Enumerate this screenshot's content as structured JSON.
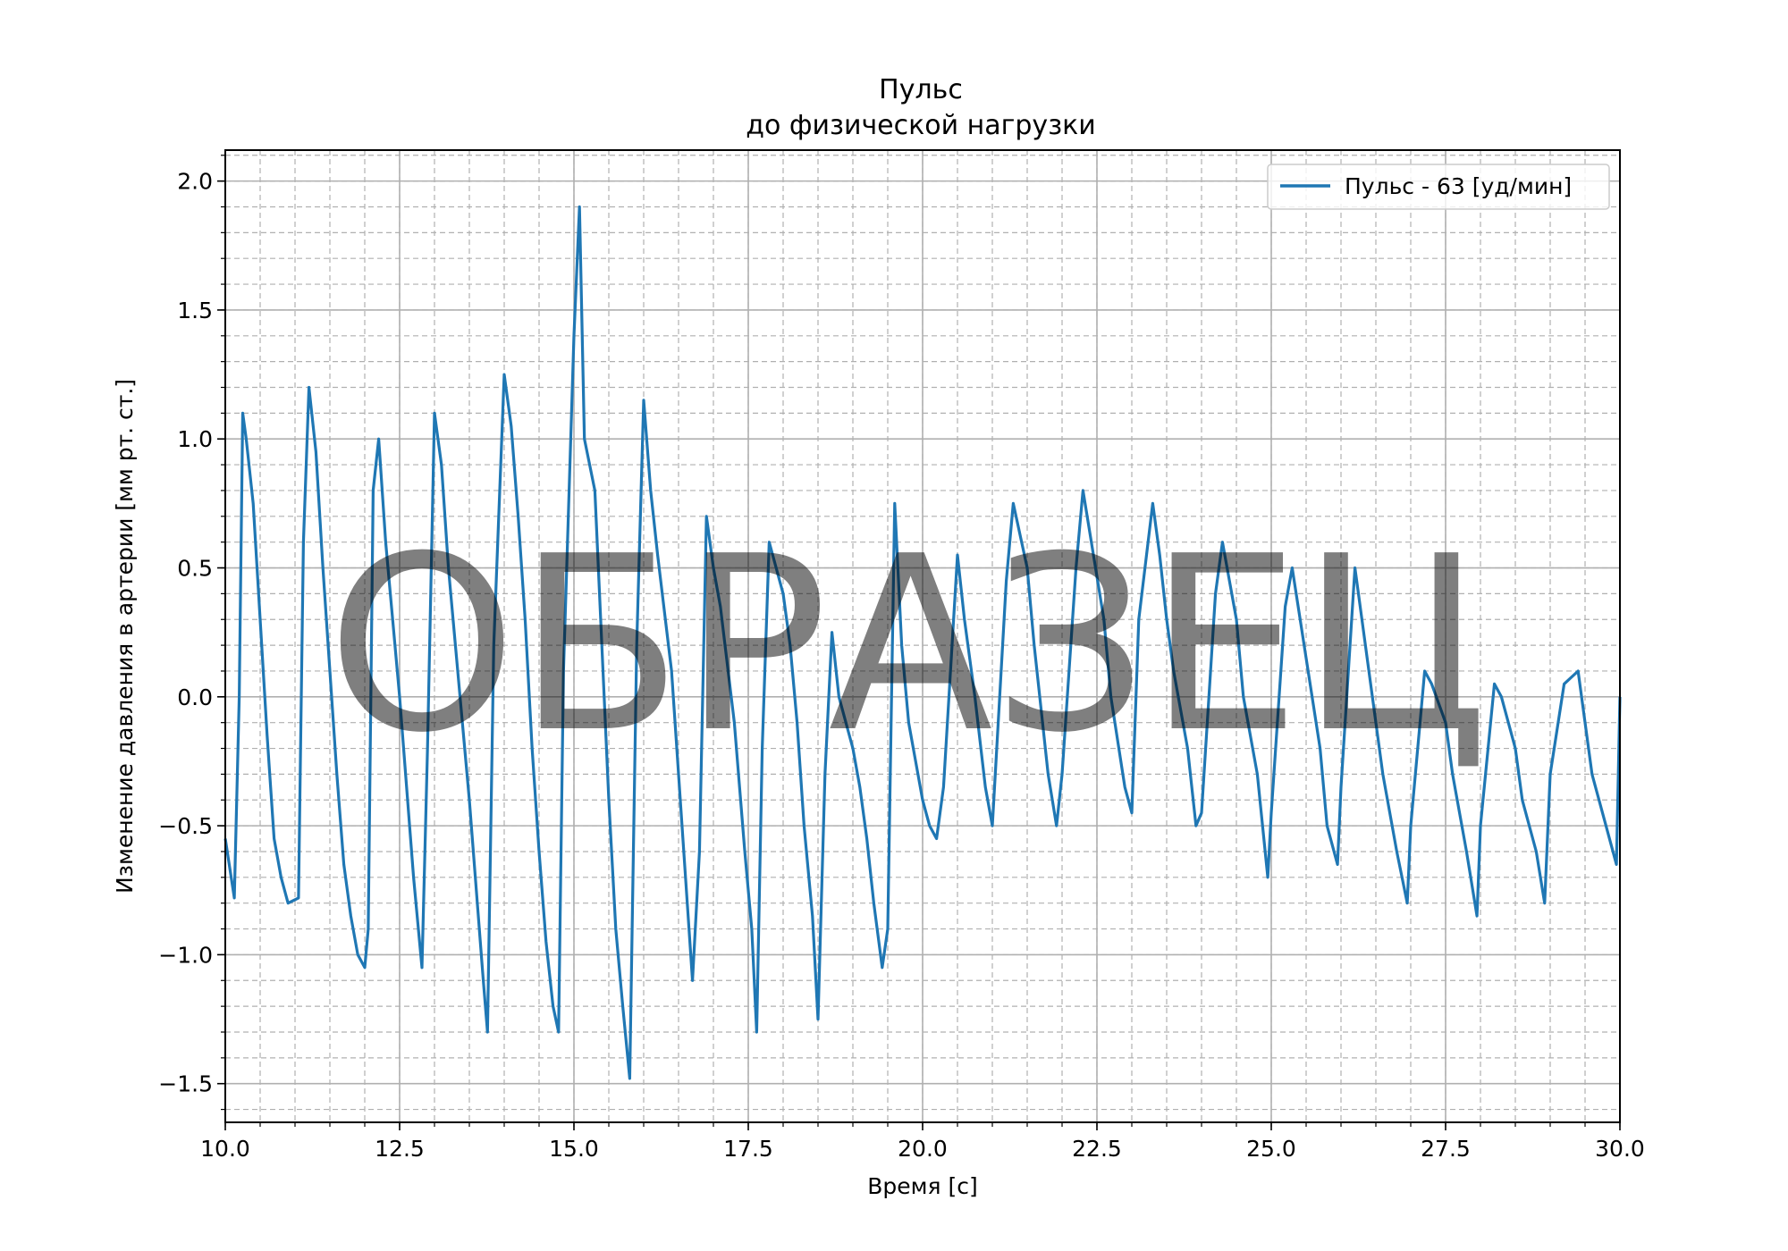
{
  "chart_data": {
    "type": "line",
    "title": [
      "Пульс",
      "до физической нагрузки"
    ],
    "xlabel": "Время [с]",
    "ylabel": "Изменение давления в артерии [мм рт. ст.]",
    "xlim": [
      10.0,
      30.0
    ],
    "ylim": [
      -1.65,
      2.12
    ],
    "x_ticks": [
      "10.0",
      "12.5",
      "15.0",
      "17.5",
      "20.0",
      "22.5",
      "25.0",
      "27.5",
      "30.0"
    ],
    "y_ticks": [
      "−1.5",
      "−1.0",
      "−0.5",
      "0.0",
      "0.5",
      "1.0",
      "1.5",
      "2.0"
    ],
    "grid": true,
    "legend_position": "top-right",
    "watermark": "ОБРАЗЕЦ",
    "colors": {
      "line": "#1f77b4",
      "grid_major": "#b0b0b0",
      "grid_minor": "#b0b0b0"
    },
    "series": [
      {
        "name": "Пульс - 63 [уд/мин]",
        "x": [
          10.0,
          10.13,
          10.2,
          10.25,
          10.3,
          10.4,
          10.5,
          10.6,
          10.7,
          10.8,
          10.9,
          11.05,
          11.12,
          11.2,
          11.3,
          11.4,
          11.5,
          11.6,
          11.7,
          11.8,
          11.9,
          12.0,
          12.05,
          12.12,
          12.2,
          12.3,
          12.4,
          12.5,
          12.6,
          12.7,
          12.82,
          12.9,
          13.0,
          13.1,
          13.2,
          13.3,
          13.4,
          13.5,
          13.6,
          13.7,
          13.76,
          13.85,
          14.0,
          14.1,
          14.2,
          14.3,
          14.4,
          14.5,
          14.6,
          14.7,
          14.78,
          14.85,
          15.0,
          15.08,
          15.15,
          15.3,
          15.4,
          15.5,
          15.6,
          15.7,
          15.8,
          15.9,
          16.0,
          16.1,
          16.2,
          16.4,
          16.5,
          16.6,
          16.7,
          16.8,
          16.9,
          17.0,
          17.1,
          17.3,
          17.45,
          17.55,
          17.62,
          17.7,
          17.8,
          18.0,
          18.1,
          18.2,
          18.3,
          18.42,
          18.5,
          18.6,
          18.7,
          18.8,
          19.0,
          19.1,
          19.2,
          19.3,
          19.42,
          19.5,
          19.6,
          19.7,
          19.8,
          19.9,
          20.0,
          20.1,
          20.2,
          20.3,
          20.5,
          20.6,
          20.75,
          20.9,
          21.0,
          21.2,
          21.3,
          21.5,
          21.6,
          21.7,
          21.8,
          21.92,
          22.0,
          22.2,
          22.3,
          22.45,
          22.6,
          22.7,
          22.9,
          23.0,
          23.1,
          23.3,
          23.4,
          23.5,
          23.6,
          23.8,
          23.92,
          24.0,
          24.2,
          24.3,
          24.5,
          24.6,
          24.8,
          24.95,
          25.0,
          25.2,
          25.3,
          25.5,
          25.7,
          25.8,
          25.95,
          26.0,
          26.2,
          26.3,
          26.5,
          26.6,
          26.8,
          26.95,
          27.0,
          27.2,
          27.3,
          27.5,
          27.6,
          27.8,
          27.95,
          28.0,
          28.2,
          28.3,
          28.5,
          28.6,
          28.8,
          28.92,
          29.0,
          29.2,
          29.4,
          29.6,
          29.8,
          29.95,
          30.0
        ],
        "y": [
          -0.55,
          -0.78,
          0.0,
          1.1,
          1.0,
          0.75,
          0.3,
          -0.15,
          -0.55,
          -0.7,
          -0.8,
          -0.78,
          0.6,
          1.2,
          0.95,
          0.5,
          0.1,
          -0.3,
          -0.65,
          -0.85,
          -1.0,
          -1.05,
          -0.9,
          0.8,
          1.0,
          0.6,
          0.3,
          0.0,
          -0.35,
          -0.7,
          -1.05,
          -0.2,
          1.1,
          0.9,
          0.5,
          0.2,
          -0.1,
          -0.4,
          -0.75,
          -1.1,
          -1.3,
          0.2,
          1.25,
          1.05,
          0.7,
          0.3,
          -0.2,
          -0.6,
          -0.95,
          -1.2,
          -1.3,
          0.1,
          1.4,
          1.9,
          1.0,
          0.8,
          0.2,
          -0.4,
          -0.9,
          -1.2,
          -1.48,
          0.2,
          1.15,
          0.8,
          0.55,
          0.1,
          -0.3,
          -0.7,
          -1.1,
          -0.6,
          0.7,
          0.5,
          0.35,
          -0.1,
          -0.6,
          -0.9,
          -1.3,
          -0.2,
          0.6,
          0.4,
          0.2,
          -0.1,
          -0.5,
          -0.85,
          -1.25,
          -0.3,
          0.25,
          0.0,
          -0.2,
          -0.35,
          -0.55,
          -0.8,
          -1.05,
          -0.9,
          0.75,
          0.2,
          -0.1,
          -0.25,
          -0.4,
          -0.5,
          -0.55,
          -0.35,
          0.55,
          0.3,
          0.0,
          -0.35,
          -0.5,
          0.45,
          0.75,
          0.5,
          0.2,
          -0.05,
          -0.3,
          -0.5,
          -0.3,
          0.5,
          0.8,
          0.55,
          0.3,
          0.0,
          -0.35,
          -0.45,
          0.3,
          0.75,
          0.55,
          0.3,
          0.1,
          -0.2,
          -0.5,
          -0.45,
          0.4,
          0.6,
          0.3,
          0.0,
          -0.3,
          -0.7,
          -0.45,
          0.35,
          0.5,
          0.15,
          -0.2,
          -0.5,
          -0.65,
          -0.35,
          0.5,
          0.3,
          -0.1,
          -0.3,
          -0.6,
          -0.8,
          -0.5,
          0.1,
          0.05,
          -0.1,
          -0.3,
          -0.6,
          -0.85,
          -0.5,
          0.05,
          0.0,
          -0.2,
          -0.4,
          -0.6,
          -0.8,
          -0.3,
          0.05,
          0.1,
          -0.3,
          -0.5,
          -0.65,
          0.0
        ]
      }
    ]
  }
}
